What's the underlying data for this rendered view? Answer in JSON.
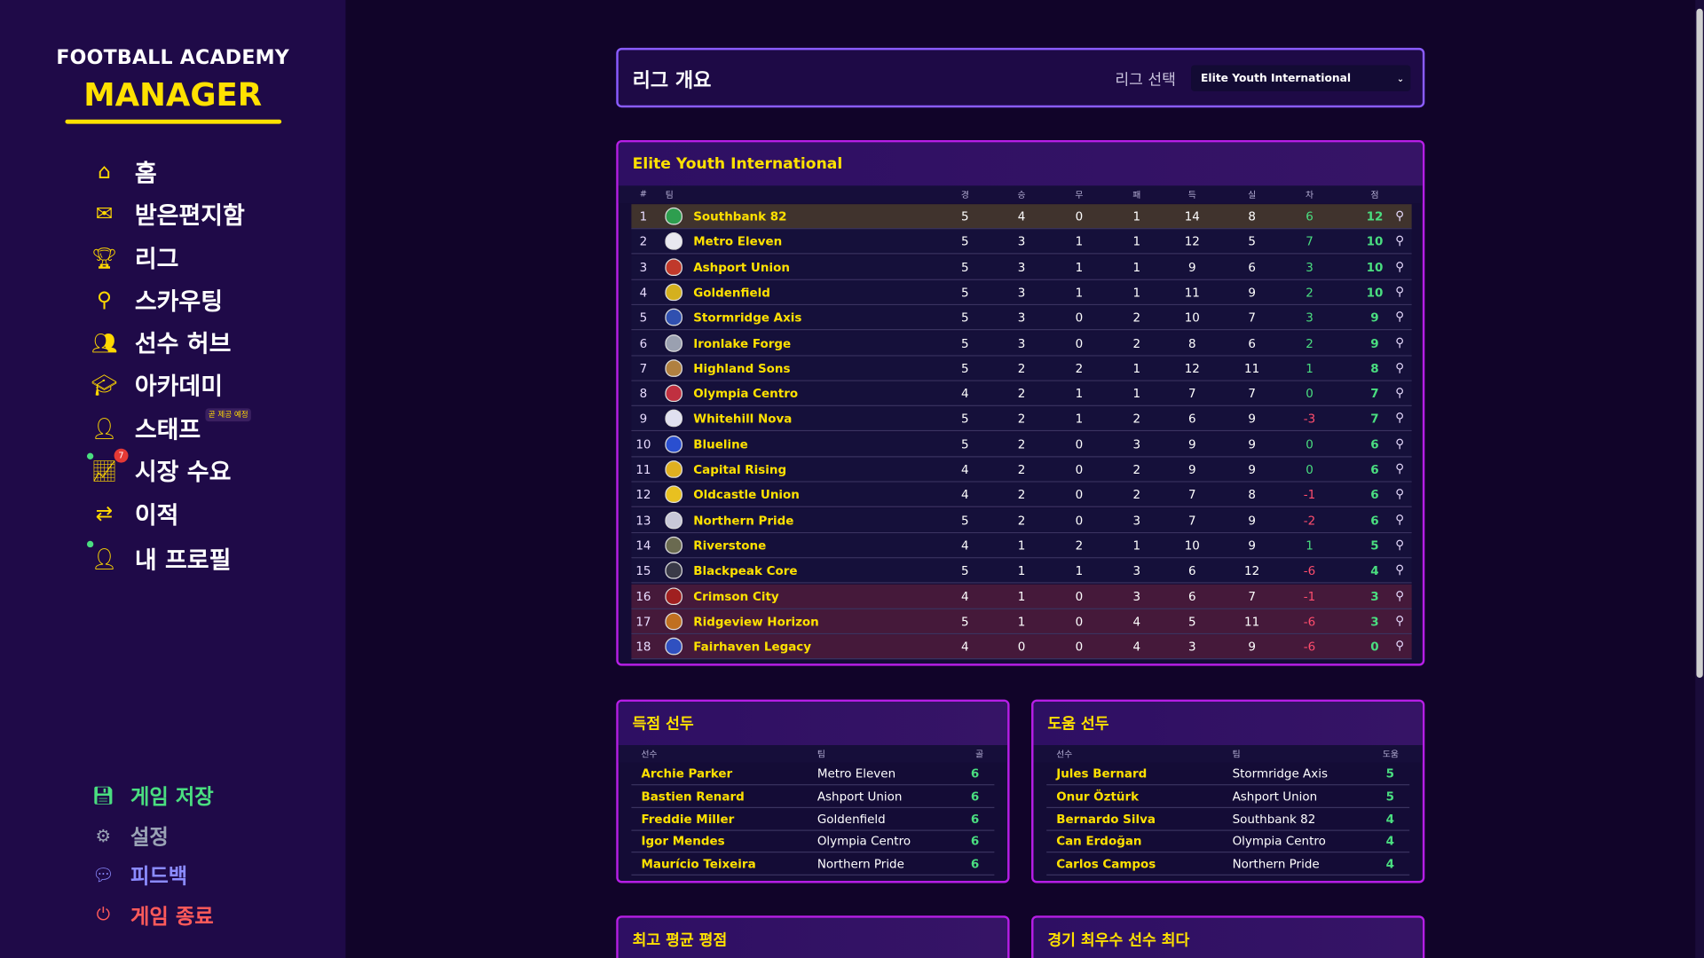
{
  "sidebar": {
    "logo_top": "FOOTBALL ACADEMY",
    "logo_bottom": "MANAGER",
    "items": [
      {
        "label": "홈",
        "icon": "home-icon",
        "glyph": "⌂"
      },
      {
        "label": "받은편지함",
        "icon": "mail-icon",
        "glyph": "✉"
      },
      {
        "label": "리그",
        "icon": "trophy-icon",
        "glyph": "🏆︎"
      },
      {
        "label": "스카우팅",
        "icon": "search-icon",
        "glyph": "⚲"
      },
      {
        "label": "선수 허브",
        "icon": "players-icon",
        "glyph": "👥︎"
      },
      {
        "label": "아카데미",
        "icon": "graduation-cap-icon",
        "glyph": "🎓︎"
      },
      {
        "label": "스태프",
        "icon": "staff-icon",
        "glyph": "👤︎",
        "badge": "곧 제공 예정"
      },
      {
        "label": "시장 수요",
        "icon": "chart-icon",
        "glyph": "📈︎",
        "notification": "7",
        "dot": true
      },
      {
        "label": "이적",
        "icon": "transfer-icon",
        "glyph": "⇄"
      },
      {
        "label": "내 프로필",
        "icon": "profile-icon",
        "glyph": "👤︎",
        "dot": true
      }
    ],
    "bottom": [
      {
        "label": "게임 저장",
        "icon": "save-icon",
        "glyph": "💾︎",
        "color": "#4ade80"
      },
      {
        "label": "설정",
        "icon": "gear-icon",
        "glyph": "⚙",
        "color": "#9aa3b5"
      },
      {
        "label": "피드백",
        "icon": "chat-icon",
        "glyph": "💬︎",
        "color": "#8b8bff"
      },
      {
        "label": "게임 종료",
        "icon": "power-icon",
        "glyph": "⏻",
        "color": "#ff5a5a"
      }
    ]
  },
  "header": {
    "title": "리그 개요",
    "select_label": "리그 선택",
    "select_value": "Elite Youth International"
  },
  "table": {
    "title": "Elite Youth International",
    "columns": [
      "#",
      "팀",
      "경",
      "승",
      "무",
      "패",
      "득",
      "실",
      "차",
      "점"
    ],
    "rows": [
      {
        "pos": 1,
        "team": "Southbank 82",
        "p": 5,
        "w": 4,
        "d": 0,
        "l": 1,
        "gf": 14,
        "ga": 8,
        "gd": 6,
        "pts": 12,
        "crest": "#2e9e4f"
      },
      {
        "pos": 2,
        "team": "Metro Eleven",
        "p": 5,
        "w": 3,
        "d": 1,
        "l": 1,
        "gf": 12,
        "ga": 5,
        "gd": 7,
        "pts": 10,
        "crest": "#e8e8f0"
      },
      {
        "pos": 3,
        "team": "Ashport Union",
        "p": 5,
        "w": 3,
        "d": 1,
        "l": 1,
        "gf": 9,
        "ga": 6,
        "gd": 3,
        "pts": 10,
        "crest": "#c0392b"
      },
      {
        "pos": 4,
        "team": "Goldenfield",
        "p": 5,
        "w": 3,
        "d": 1,
        "l": 1,
        "gf": 11,
        "ga": 9,
        "gd": 2,
        "pts": 10,
        "crest": "#d4b01e"
      },
      {
        "pos": 5,
        "team": "Stormridge Axis",
        "p": 5,
        "w": 3,
        "d": 0,
        "l": 2,
        "gf": 10,
        "ga": 7,
        "gd": 3,
        "pts": 9,
        "crest": "#3050b0"
      },
      {
        "pos": 6,
        "team": "Ironlake Forge",
        "p": 5,
        "w": 3,
        "d": 0,
        "l": 2,
        "gf": 8,
        "ga": 6,
        "gd": 2,
        "pts": 9,
        "crest": "#9aa0b0"
      },
      {
        "pos": 7,
        "team": "Highland Sons",
        "p": 5,
        "w": 2,
        "d": 2,
        "l": 1,
        "gf": 12,
        "ga": 11,
        "gd": 1,
        "pts": 8,
        "crest": "#b08040"
      },
      {
        "pos": 8,
        "team": "Olympia Centro",
        "p": 4,
        "w": 2,
        "d": 1,
        "l": 1,
        "gf": 7,
        "ga": 7,
        "gd": 0,
        "pts": 7,
        "crest": "#c03040"
      },
      {
        "pos": 9,
        "team": "Whitehill Nova",
        "p": 5,
        "w": 2,
        "d": 1,
        "l": 2,
        "gf": 6,
        "ga": 9,
        "gd": -3,
        "pts": 7,
        "crest": "#e0e0f0"
      },
      {
        "pos": 10,
        "team": "Blueline",
        "p": 5,
        "w": 2,
        "d": 0,
        "l": 3,
        "gf": 9,
        "ga": 9,
        "gd": 0,
        "pts": 6,
        "crest": "#2a4fd0"
      },
      {
        "pos": 11,
        "team": "Capital Rising",
        "p": 4,
        "w": 2,
        "d": 0,
        "l": 2,
        "gf": 9,
        "ga": 9,
        "gd": 0,
        "pts": 6,
        "crest": "#e0b020"
      },
      {
        "pos": 12,
        "team": "Oldcastle Union",
        "p": 4,
        "w": 2,
        "d": 0,
        "l": 2,
        "gf": 7,
        "ga": 8,
        "gd": -1,
        "pts": 6,
        "crest": "#e8c020"
      },
      {
        "pos": 13,
        "team": "Northern Pride",
        "p": 5,
        "w": 2,
        "d": 0,
        "l": 3,
        "gf": 7,
        "ga": 9,
        "gd": -2,
        "pts": 6,
        "crest": "#c8c8d8"
      },
      {
        "pos": 14,
        "team": "Riverstone",
        "p": 4,
        "w": 1,
        "d": 2,
        "l": 1,
        "gf": 10,
        "ga": 9,
        "gd": 1,
        "pts": 5,
        "crest": "#6a6a50"
      },
      {
        "pos": 15,
        "team": "Blackpeak Core",
        "p": 5,
        "w": 1,
        "d": 1,
        "l": 3,
        "gf": 6,
        "ga": 12,
        "gd": -6,
        "pts": 4,
        "crest": "#3a3a48"
      },
      {
        "pos": 16,
        "team": "Crimson City",
        "p": 4,
        "w": 1,
        "d": 0,
        "l": 3,
        "gf": 6,
        "ga": 7,
        "gd": -1,
        "pts": 3,
        "crest": "#a02020"
      },
      {
        "pos": 17,
        "team": "Ridgeview Horizon",
        "p": 5,
        "w": 1,
        "d": 0,
        "l": 4,
        "gf": 5,
        "ga": 11,
        "gd": -6,
        "pts": 3,
        "crest": "#c07020"
      },
      {
        "pos": 18,
        "team": "Fairhaven Legacy",
        "p": 4,
        "w": 0,
        "d": 0,
        "l": 4,
        "gf": 3,
        "ga": 9,
        "gd": -6,
        "pts": 0,
        "crest": "#3050c0"
      }
    ]
  },
  "scorers": {
    "title": "득점 선두",
    "columns": [
      "선수",
      "팀",
      "골"
    ],
    "rows": [
      {
        "player": "Archie Parker",
        "team": "Metro Eleven",
        "value": 6
      },
      {
        "player": "Bastien Renard",
        "team": "Ashport Union",
        "value": 6
      },
      {
        "player": "Freddie Miller",
        "team": "Goldenfield",
        "value": 6
      },
      {
        "player": "Igor Mendes",
        "team": "Olympia Centro",
        "value": 6
      },
      {
        "player": "Maurício Teixeira",
        "team": "Northern Pride",
        "value": 6
      }
    ]
  },
  "assists": {
    "title": "도움 선두",
    "columns": [
      "선수",
      "팀",
      "도움"
    ],
    "rows": [
      {
        "player": "Jules Bernard",
        "team": "Stormridge Axis",
        "value": 5
      },
      {
        "player": "Onur Öztürk",
        "team": "Ashport Union",
        "value": 5
      },
      {
        "player": "Bernardo Silva",
        "team": "Southbank 82",
        "value": 4
      },
      {
        "player": "Can Erdoğan",
        "team": "Olympia Centro",
        "value": 4
      },
      {
        "player": "Carlos Campos",
        "team": "Northern Pride",
        "value": 4
      }
    ]
  },
  "ratings": {
    "title": "최고 평균 평점"
  },
  "motm": {
    "title": "경기 최우수 선수 최다"
  },
  "colors": {
    "accent": "#ffe100",
    "positive": "#4ade80",
    "negative": "#ff4d6d",
    "border": "#b61ee6"
  }
}
